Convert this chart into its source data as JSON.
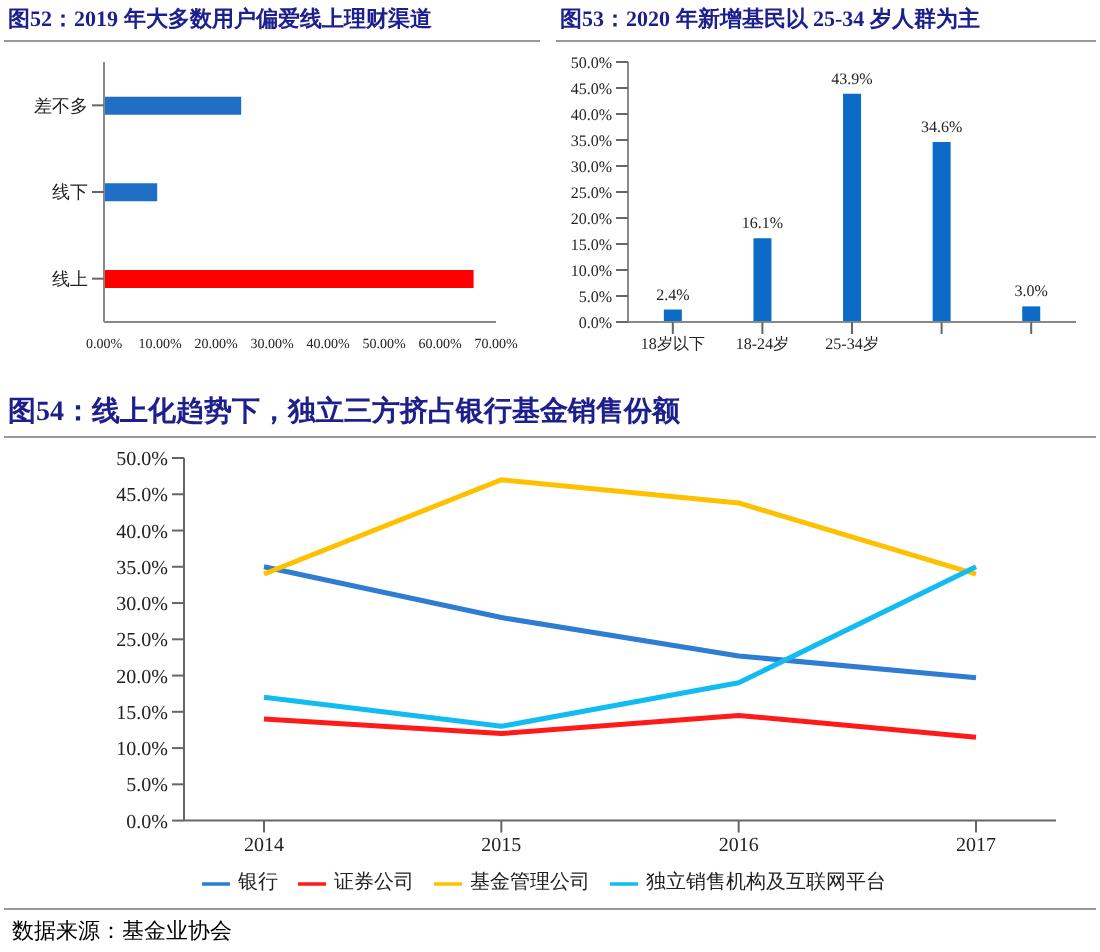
{
  "chart_data": [
    {
      "type": "bar",
      "orientation": "horizontal",
      "title": "图52：2019 年大多数用户偏爱线上理财渠道",
      "categories": [
        "差不多",
        "线下",
        "线上"
      ],
      "values": [
        24.5,
        9.5,
        66
      ],
      "colors": [
        "#1f6fc6",
        "#1f6fc6",
        "#ff0000"
      ],
      "xlim": [
        0,
        70
      ],
      "xticks": [
        {
          "value": 0,
          "label": "0.00%"
        },
        {
          "value": 10,
          "label": "10.00%"
        },
        {
          "value": 20,
          "label": "20.00%"
        },
        {
          "value": 30,
          "label": "30.00%"
        },
        {
          "value": 40,
          "label": "40.00%"
        },
        {
          "value": 50,
          "label": "50.00%"
        },
        {
          "value": 60,
          "label": "60.00%"
        },
        {
          "value": 70,
          "label": "70.00%"
        }
      ],
      "grid": false
    },
    {
      "type": "bar",
      "title": "图53：2020 年新增基民以 25-34 岁人群为主",
      "categories": [
        "18岁以下",
        "18-24岁",
        "25-34岁",
        null,
        null
      ],
      "values": [
        2.4,
        16.1,
        43.9,
        34.6,
        3.0
      ],
      "value_labels": [
        "2.4%",
        "16.1%",
        "43.9%",
        "34.6%",
        "3.0%"
      ],
      "color": "#0b6bc6",
      "ylim": [
        0,
        50
      ],
      "yticks": [
        {
          "value": 0,
          "label": "0.0%"
        },
        {
          "value": 5,
          "label": "5.0%"
        },
        {
          "value": 10,
          "label": "10.0%"
        },
        {
          "value": 15,
          "label": "15.0%"
        },
        {
          "value": 20,
          "label": "20.0%"
        },
        {
          "value": 25,
          "label": "25.0%"
        },
        {
          "value": 30,
          "label": "30.0%"
        },
        {
          "value": 35,
          "label": "35.0%"
        },
        {
          "value": 40,
          "label": "40.0%"
        },
        {
          "value": 45,
          "label": "45.0%"
        },
        {
          "value": 50,
          "label": "50.0%"
        }
      ],
      "grid": false
    },
    {
      "type": "line",
      "title": "图54：线上化趋势下，独立三方挤占银行基金销售份额",
      "categories": [
        "2014",
        "2015",
        "2016",
        "2017"
      ],
      "series": [
        {
          "name": "银行",
          "color": "#2e7dd2",
          "values": [
            35,
            28,
            22.7,
            19.7
          ]
        },
        {
          "name": "证券公司",
          "color": "#ff1a1a",
          "values": [
            14,
            12,
            14.5,
            11.5
          ]
        },
        {
          "name": "基金管理公司",
          "color": "#ffc000",
          "values": [
            34,
            47,
            43.8,
            34
          ]
        },
        {
          "name": "独立销售机构及互联网平台",
          "color": "#12bcf0",
          "values": [
            17,
            13,
            19,
            35
          ]
        }
      ],
      "ylim": [
        0,
        50
      ],
      "yticks": [
        {
          "value": 0,
          "label": "0.0%"
        },
        {
          "value": 5,
          "label": "5.0%"
        },
        {
          "value": 10,
          "label": "10.0%"
        },
        {
          "value": 15,
          "label": "15.0%"
        },
        {
          "value": 20,
          "label": "20.0%"
        },
        {
          "value": 25,
          "label": "25.0%"
        },
        {
          "value": 30,
          "label": "30.0%"
        },
        {
          "value": 35,
          "label": "35.0%"
        },
        {
          "value": 40,
          "label": "40.0%"
        },
        {
          "value": 45,
          "label": "45.0%"
        },
        {
          "value": 50,
          "label": "50.0%"
        }
      ],
      "grid": false,
      "legend": "bottom",
      "marker": "none",
      "annotations": [
        "数据来源：基金业协会"
      ]
    }
  ]
}
